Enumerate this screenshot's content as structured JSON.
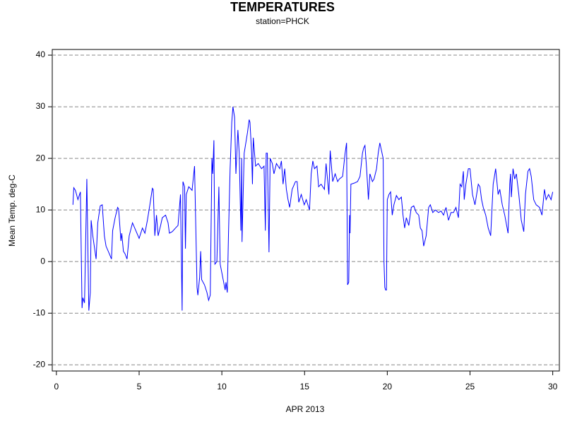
{
  "chart_data": {
    "type": "line",
    "title": "TEMPERATURES",
    "subtitle": "station=PHCK",
    "ylabel": "Mean Temp. deg-C",
    "xlabel": "APR 2013",
    "xlim": [
      -0.25,
      30.4
    ],
    "xticks": [
      0,
      5,
      10,
      15,
      20,
      25,
      30
    ],
    "ylim": [
      -21.2,
      41.1
    ],
    "yticks": [
      -20,
      -10,
      0,
      10,
      20,
      30,
      40
    ],
    "grid": true,
    "series": [
      {
        "name": "Mean Temp",
        "color": "#0000ff",
        "x": [
          1.0,
          1.05,
          1.15,
          1.3,
          1.45,
          1.55,
          1.6,
          1.7,
          1.84,
          1.96,
          2.05,
          2.1,
          2.2,
          2.4,
          2.5,
          2.65,
          2.77,
          2.9,
          3.0,
          3.2,
          3.33,
          3.4,
          3.55,
          3.7,
          3.76,
          3.9,
          3.95,
          4.05,
          4.15,
          4.27,
          4.4,
          4.6,
          4.8,
          5.0,
          5.2,
          5.35,
          5.5,
          5.65,
          5.8,
          5.85,
          5.95,
          6.05,
          6.15,
          6.3,
          6.4,
          6.6,
          6.75,
          6.83,
          7.0,
          7.2,
          7.35,
          7.5,
          7.6,
          7.65,
          7.75,
          7.8,
          7.85,
          8.0,
          8.2,
          8.35,
          8.5,
          8.55,
          8.66,
          8.72,
          8.78,
          8.95,
          9.1,
          9.2,
          9.3,
          9.4,
          9.45,
          9.52,
          9.58,
          9.7,
          9.82,
          9.9,
          10.05,
          10.2,
          10.25,
          10.33,
          10.4,
          10.5,
          10.6,
          10.67,
          10.77,
          10.85,
          10.97,
          11.05,
          11.15,
          11.2,
          11.22,
          11.35,
          11.55,
          11.65,
          11.7,
          11.8,
          11.85,
          11.9,
          12.04,
          12.2,
          12.4,
          12.55,
          12.63,
          12.68,
          12.75,
          12.85,
          12.92,
          13.05,
          13.15,
          13.3,
          13.5,
          13.6,
          13.7,
          13.8,
          13.9,
          14.0,
          14.1,
          14.25,
          14.45,
          14.55,
          14.65,
          14.8,
          14.98,
          15.1,
          15.3,
          15.4,
          15.5,
          15.6,
          15.75,
          15.85,
          16.0,
          16.2,
          16.3,
          16.47,
          16.55,
          16.7,
          16.85,
          17.0,
          17.1,
          17.3,
          17.45,
          17.54,
          17.6,
          17.67,
          17.72,
          17.75,
          17.8,
          18.0,
          18.2,
          18.35,
          18.5,
          18.57,
          18.65,
          18.75,
          18.86,
          18.95,
          19.1,
          19.2,
          19.35,
          19.45,
          19.55,
          19.65,
          19.75,
          19.8,
          19.85,
          19.9,
          19.95,
          20.0,
          20.1,
          20.2,
          20.3,
          20.4,
          20.55,
          20.7,
          20.85,
          20.95,
          21.05,
          21.15,
          21.3,
          21.45,
          21.6,
          21.75,
          21.9,
          22.0,
          22.1,
          22.2,
          22.35,
          22.5,
          22.6,
          22.75,
          22.9,
          23.1,
          23.25,
          23.4,
          23.55,
          23.7,
          23.85,
          24.0,
          24.15,
          24.3,
          24.4,
          24.5,
          24.6,
          24.65,
          24.75,
          24.9,
          25.0,
          25.15,
          25.3,
          25.5,
          25.6,
          25.7,
          25.8,
          25.95,
          26.1,
          26.25,
          26.4,
          26.55,
          26.7,
          26.8,
          26.95,
          27.1,
          27.3,
          27.4,
          27.45,
          27.5,
          27.6,
          27.7,
          27.8,
          27.95,
          28.1,
          28.25,
          28.35,
          28.5,
          28.6,
          28.7,
          28.85,
          29.0,
          29.2,
          29.35,
          29.5,
          29.6,
          29.75,
          29.9,
          30.0
        ],
        "values": [
          11,
          14.3,
          13.8,
          12,
          13.5,
          -9,
          -7,
          -8,
          16,
          -9.5,
          -6,
          8,
          5,
          0.5,
          7.5,
          10.8,
          11,
          5,
          3,
          1.5,
          0.5,
          6,
          8.5,
          10.5,
          10.2,
          4,
          5.5,
          2,
          1.5,
          0.5,
          5,
          7.5,
          6,
          4.5,
          6.5,
          5.5,
          8,
          11,
          14.2,
          14,
          5,
          9,
          5,
          7,
          8.5,
          9,
          7.5,
          5.5,
          5.8,
          6.5,
          7,
          13,
          -9.5,
          15.5,
          14.5,
          2.5,
          13,
          14.5,
          13.8,
          18.5,
          -5,
          -6.5,
          -3,
          2,
          -3.5,
          -4.5,
          -6,
          -7.5,
          -6.5,
          20,
          17,
          23.5,
          -0.5,
          0,
          14.5,
          -0.5,
          -3,
          -5.5,
          -4,
          -6,
          5,
          18,
          27,
          30,
          28,
          17,
          25.5,
          21,
          6,
          20,
          3.8,
          21,
          25,
          27.5,
          27,
          21,
          15,
          24,
          18.5,
          19,
          18,
          18.5,
          6,
          21,
          21,
          1.8,
          20,
          19,
          17,
          19,
          18,
          19.5,
          15,
          18,
          14,
          12,
          10.5,
          14,
          15.5,
          15.5,
          11.5,
          13,
          11,
          12,
          10,
          17,
          19.5,
          18,
          18.5,
          14.5,
          15,
          14,
          19,
          13,
          21.5,
          15.5,
          17,
          15.5,
          16,
          16.5,
          21,
          23,
          -4.5,
          -4,
          9,
          5.5,
          15,
          15.2,
          15.5,
          16.5,
          21,
          22,
          22.5,
          18,
          12,
          17,
          15.5,
          16,
          18,
          21,
          23,
          21.5,
          20,
          0,
          -5,
          -5.5,
          -5.5,
          12,
          13,
          13.5,
          9,
          11,
          12.8,
          12,
          12.5,
          9,
          6.5,
          8.5,
          7,
          10.5,
          10.8,
          9.5,
          9,
          6.5,
          6,
          3,
          5,
          10.5,
          11,
          9.5,
          10,
          9.5,
          9.8,
          9,
          10.5,
          8,
          9.5,
          9.5,
          10.5,
          8.5,
          15,
          14.5,
          17.5,
          12,
          15,
          18,
          18,
          13,
          11,
          15,
          14.5,
          12,
          10.5,
          9,
          6.5,
          5,
          15,
          18,
          13,
          14,
          11,
          9,
          5.5,
          15,
          17,
          12.5,
          18,
          16,
          17,
          13,
          8,
          5.8,
          13,
          17.5,
          18,
          16.5,
          12,
          11,
          10.5,
          9,
          14,
          12,
          13,
          12,
          13.5
        ]
      }
    ]
  }
}
